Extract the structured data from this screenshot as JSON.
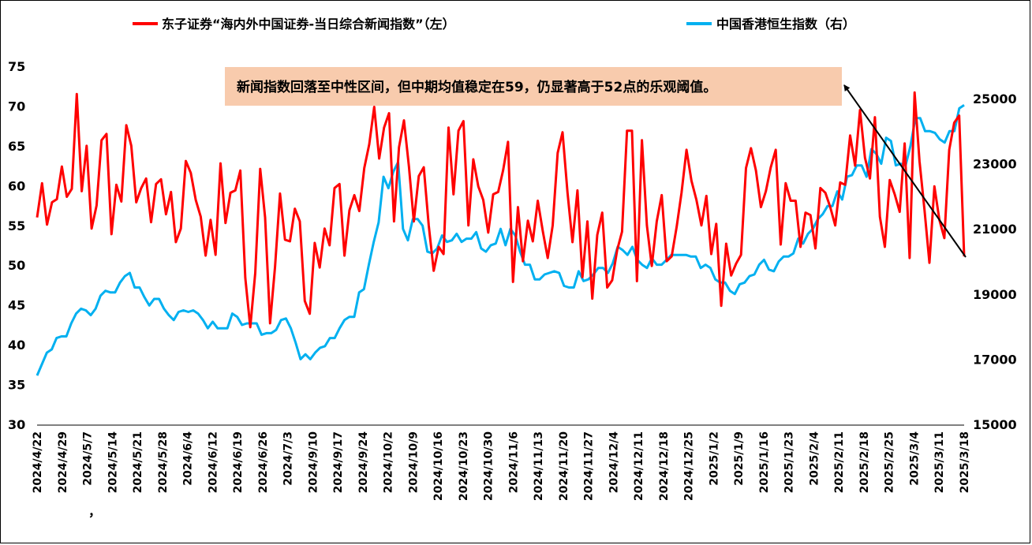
{
  "chart_data": {
    "type": "line",
    "series": [
      {
        "name": "东子证券“海内外中国证券-当日综合新闻指数”（左）",
        "axis": "left",
        "color": "#ff0000",
        "values": [
          56.0,
          60.3,
          55.1,
          57.9,
          58.3,
          62.4,
          58.6,
          59.6,
          71.5,
          59.3,
          65.0,
          54.6,
          57.5,
          65.7,
          66.5,
          53.9,
          60.1,
          58.0,
          67.6,
          65.0,
          57.9,
          59.7,
          60.9,
          55.4,
          60.2,
          60.8,
          56.4,
          59.2,
          52.9,
          54.6,
          63.1,
          61.6,
          58.2,
          56.1,
          51.2,
          55.7,
          51.3,
          62.8,
          55.3,
          59.1,
          59.4,
          61.9,
          48.4,
          42.2,
          49.0,
          62.1,
          56.0,
          42.7,
          49.8,
          59.0,
          53.2,
          53.0,
          57.1,
          55.5,
          45.5,
          43.9,
          52.8,
          49.7,
          54.6,
          52.5,
          59.7,
          60.2,
          51.2,
          56.9,
          58.8,
          56.8,
          62.2,
          65.2,
          69.9,
          63.4,
          67.3,
          69.1,
          55.5,
          64.8,
          68.2,
          62.4,
          55.5,
          61.2,
          62.3,
          55.0,
          49.3,
          52.3,
          51.4,
          67.3,
          58.9,
          66.9,
          68.1,
          55.0,
          63.3,
          59.9,
          58.2,
          54.1,
          58.9,
          59.2,
          61.9,
          65.5,
          47.9,
          57.3,
          50.5,
          55.6,
          53.0,
          58.1,
          54.3,
          50.9,
          55.0,
          64.1,
          66.7,
          59.1,
          52.9,
          59.4,
          48.5,
          55.5,
          45.8,
          53.8,
          56.6,
          47.2,
          48.1,
          51.9,
          54.2,
          66.9,
          66.9,
          48.0,
          65.7,
          55.0,
          49.9,
          55.5,
          58.8,
          50.5,
          51.1,
          54.8,
          59.1,
          64.5,
          60.6,
          58.2,
          55.0,
          58.7,
          51.4,
          55.2,
          44.9,
          52.7,
          48.7,
          50.2,
          51.3,
          62.2,
          64.7,
          61.9,
          57.3,
          59.3,
          62.3,
          64.5,
          52.6,
          60.3,
          58.1,
          58.1,
          52.3,
          56.6,
          56.3,
          52.1,
          59.7,
          59.1,
          57.3,
          55.0,
          60.4,
          60.1,
          66.3,
          62.5,
          69.5,
          63.5,
          60.9,
          68.6,
          56.1,
          52.3,
          60.7,
          58.9,
          56.7,
          65.3,
          50.9,
          71.7,
          63.1,
          57.0,
          50.3,
          59.9,
          55.7,
          53.4,
          64.5,
          67.9,
          68.8,
          51.1
        ],
        "type": "line"
      },
      {
        "name": "中国香港恒生指数（右）",
        "axis": "right",
        "color": "#00b0f0",
        "values": [
          16500,
          16850,
          17200,
          17300,
          17650,
          17700,
          17700,
          18100,
          18400,
          18550,
          18500,
          18350,
          18550,
          18950,
          19100,
          19050,
          19050,
          19350,
          19550,
          19650,
          19200,
          19200,
          18900,
          18650,
          18850,
          18850,
          18550,
          18350,
          18200,
          18450,
          18500,
          18450,
          18500,
          18400,
          18200,
          17950,
          18150,
          17950,
          17950,
          17950,
          18400,
          18300,
          18050,
          18100,
          18100,
          18100,
          17750,
          17800,
          17800,
          17900,
          18200,
          18250,
          17950,
          17500,
          17000,
          17150,
          17000,
          17200,
          17350,
          17400,
          17650,
          17650,
          17950,
          18200,
          18300,
          18300,
          19050,
          19150,
          19900,
          20600,
          21200,
          22600,
          22250,
          22750,
          23050,
          21000,
          20650,
          21300,
          21300,
          21100,
          20300,
          20250,
          20400,
          20800,
          20600,
          20650,
          20850,
          20600,
          20700,
          20700,
          20900,
          20400,
          20300,
          20500,
          20550,
          21000,
          20500,
          21000,
          20800,
          20300,
          19900,
          19900,
          19450,
          19450,
          19600,
          19650,
          19700,
          19650,
          19250,
          19200,
          19200,
          19700,
          19400,
          19450,
          19600,
          19800,
          19800,
          19650,
          19950,
          20450,
          20350,
          20200,
          20450,
          20050,
          19900,
          19800,
          20100,
          19900,
          19900,
          20050,
          20200,
          20200,
          20200,
          20200,
          20150,
          20150,
          19800,
          19900,
          19800,
          19450,
          19350,
          19350,
          19100,
          19000,
          19300,
          19350,
          19550,
          19600,
          19900,
          20050,
          19750,
          19700,
          20000,
          20150,
          20150,
          20250,
          20700,
          20550,
          20850,
          21000,
          21300,
          21450,
          21700,
          21700,
          22150,
          21900,
          22600,
          22650,
          22950,
          22950,
          22600,
          23450,
          23300,
          23000,
          23800,
          23700,
          22950,
          23000,
          22950,
          23550,
          24400,
          24400,
          24000,
          24000,
          23950,
          23750,
          23650,
          24000,
          24000,
          24700,
          24800
        ]
      }
    ],
    "x_tick_labels": [
      "2024/4/22",
      "2024/4/29",
      "2024/5/7",
      "2024/5/14",
      "2024/5/21",
      "2024/5/28",
      "2024/6/4",
      "2024/6/12",
      "2024/6/19",
      "2024/6/26",
      "2024/7/3",
      "2024/9/10",
      "2024/9/17",
      "2024/9/24",
      "2024/10/2",
      "2024/10/9",
      "2024/10/16",
      "2024/10/23",
      "2024/10/30",
      "2024/11/6",
      "2024/11/13",
      "2024/11/20",
      "2024/11/27",
      "2024/12/4",
      "2024/12/11",
      "2024/12/18",
      "2024/12/25",
      "2025/1/2",
      "2025/1/9",
      "2025/1/16",
      "2025/1/23",
      "2025/2/4",
      "2025/2/11",
      "2025/2/18",
      "2025/2/25",
      "2025/3/4",
      "2025/3/11",
      "2025/3/18"
    ],
    "stray_mark": "，",
    "y_left": {
      "ticks": [
        "30",
        "35",
        "40",
        "45",
        "50",
        "55",
        "60",
        "65",
        "70",
        "75"
      ],
      "ylim": [
        30,
        75
      ]
    },
    "y_right": {
      "ticks": [
        "15000",
        "17000",
        "19000",
        "21000",
        "23000",
        "25000"
      ],
      "ylim": [
        15000,
        26000
      ]
    },
    "annotation": {
      "text": "新闻指数回落至中性区间，但中期均值稳定在59，仍显著高于52点的乐观阈值。",
      "background": "#f8cbad",
      "arrow_color": "#000000"
    },
    "legend": {
      "position": "top"
    },
    "grid": false
  }
}
